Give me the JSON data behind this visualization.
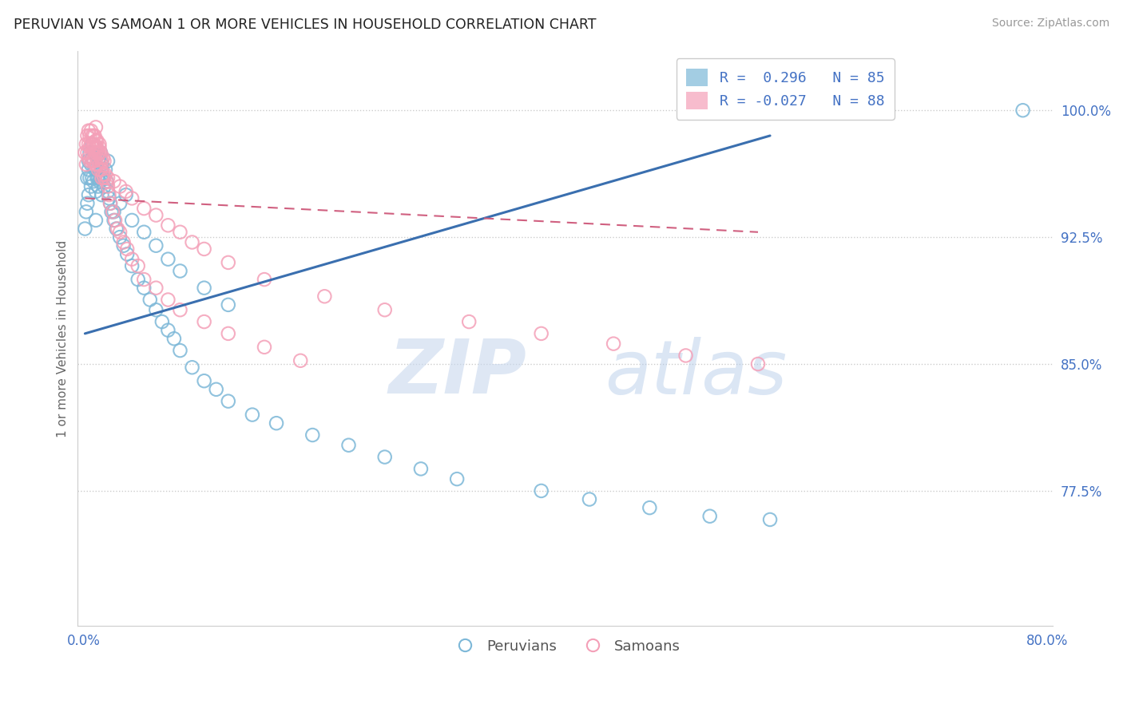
{
  "title": "PERUVIAN VS SAMOAN 1 OR MORE VEHICLES IN HOUSEHOLD CORRELATION CHART",
  "source": "Source: ZipAtlas.com",
  "ylabel": "1 or more Vehicles in Household",
  "xlim": [
    -0.005,
    0.805
  ],
  "ylim": [
    0.695,
    1.035
  ],
  "yticks": [
    0.775,
    0.85,
    0.925,
    1.0
  ],
  "ytick_labels": [
    "77.5%",
    "85.0%",
    "92.5%",
    "100.0%"
  ],
  "xtick_vals": [
    0.0,
    0.1,
    0.2,
    0.3,
    0.4,
    0.5,
    0.6,
    0.7,
    0.8
  ],
  "xtick_labels": [
    "0.0%",
    "",
    "",
    "",
    "",
    "",
    "",
    "",
    "80.0%"
  ],
  "blue_R": 0.296,
  "blue_N": 85,
  "pink_R": -0.027,
  "pink_N": 88,
  "blue_color": "#7db8d8",
  "pink_color": "#f4a0b8",
  "trend_blue_color": "#3a6faf",
  "trend_pink_color": "#d06080",
  "watermark_zip": "ZIP",
  "watermark_atlas": "atlas",
  "legend_label_blue": "Peruvians",
  "legend_label_pink": "Samoans",
  "blue_x": [
    0.001,
    0.002,
    0.003,
    0.003,
    0.004,
    0.004,
    0.004,
    0.005,
    0.005,
    0.005,
    0.006,
    0.006,
    0.007,
    0.007,
    0.007,
    0.008,
    0.008,
    0.009,
    0.009,
    0.01,
    0.01,
    0.01,
    0.011,
    0.011,
    0.012,
    0.012,
    0.013,
    0.013,
    0.014,
    0.014,
    0.015,
    0.015,
    0.016,
    0.017,
    0.018,
    0.019,
    0.02,
    0.021,
    0.022,
    0.023,
    0.025,
    0.027,
    0.03,
    0.033,
    0.036,
    0.04,
    0.045,
    0.05,
    0.055,
    0.06,
    0.065,
    0.07,
    0.075,
    0.08,
    0.09,
    0.1,
    0.11,
    0.12,
    0.14,
    0.16,
    0.19,
    0.22,
    0.25,
    0.28,
    0.31,
    0.38,
    0.42,
    0.47,
    0.52,
    0.57,
    0.01,
    0.012,
    0.015,
    0.02,
    0.025,
    0.03,
    0.035,
    0.04,
    0.05,
    0.06,
    0.07,
    0.08,
    0.1,
    0.12,
    0.78
  ],
  "blue_y": [
    0.93,
    0.94,
    0.945,
    0.96,
    0.95,
    0.965,
    0.97,
    0.96,
    0.97,
    0.975,
    0.955,
    0.968,
    0.96,
    0.972,
    0.98,
    0.958,
    0.97,
    0.965,
    0.975,
    0.952,
    0.965,
    0.978,
    0.96,
    0.973,
    0.955,
    0.97,
    0.958,
    0.972,
    0.96,
    0.975,
    0.95,
    0.968,
    0.96,
    0.955,
    0.965,
    0.958,
    0.952,
    0.948,
    0.945,
    0.94,
    0.935,
    0.93,
    0.925,
    0.92,
    0.915,
    0.908,
    0.9,
    0.895,
    0.888,
    0.882,
    0.875,
    0.87,
    0.865,
    0.858,
    0.848,
    0.84,
    0.835,
    0.828,
    0.82,
    0.815,
    0.808,
    0.802,
    0.795,
    0.788,
    0.782,
    0.775,
    0.77,
    0.765,
    0.76,
    0.758,
    0.935,
    0.96,
    0.965,
    0.97,
    0.94,
    0.945,
    0.95,
    0.935,
    0.928,
    0.92,
    0.912,
    0.905,
    0.895,
    0.885,
    1.0
  ],
  "pink_x": [
    0.001,
    0.002,
    0.002,
    0.003,
    0.003,
    0.004,
    0.004,
    0.004,
    0.005,
    0.005,
    0.005,
    0.006,
    0.006,
    0.006,
    0.007,
    0.007,
    0.007,
    0.008,
    0.008,
    0.008,
    0.009,
    0.009,
    0.01,
    0.01,
    0.01,
    0.01,
    0.011,
    0.011,
    0.012,
    0.012,
    0.013,
    0.013,
    0.014,
    0.014,
    0.015,
    0.015,
    0.016,
    0.016,
    0.017,
    0.017,
    0.018,
    0.019,
    0.02,
    0.021,
    0.022,
    0.024,
    0.026,
    0.028,
    0.03,
    0.033,
    0.036,
    0.04,
    0.045,
    0.05,
    0.06,
    0.07,
    0.08,
    0.1,
    0.12,
    0.15,
    0.18,
    0.02,
    0.025,
    0.03,
    0.035,
    0.04,
    0.05,
    0.06,
    0.07,
    0.08,
    0.09,
    0.1,
    0.12,
    0.15,
    0.2,
    0.25,
    0.32,
    0.38,
    0.44,
    0.5,
    0.56,
    0.008,
    0.009,
    0.01,
    0.011,
    0.012,
    0.013,
    0.014
  ],
  "pink_y": [
    0.975,
    0.98,
    0.968,
    0.975,
    0.985,
    0.972,
    0.98,
    0.988,
    0.97,
    0.978,
    0.985,
    0.972,
    0.98,
    0.988,
    0.97,
    0.978,
    0.985,
    0.97,
    0.978,
    0.985,
    0.97,
    0.978,
    0.968,
    0.975,
    0.982,
    0.99,
    0.968,
    0.978,
    0.965,
    0.975,
    0.968,
    0.978,
    0.965,
    0.975,
    0.96,
    0.97,
    0.962,
    0.972,
    0.96,
    0.97,
    0.962,
    0.958,
    0.955,
    0.95,
    0.945,
    0.94,
    0.935,
    0.93,
    0.928,
    0.922,
    0.918,
    0.912,
    0.908,
    0.9,
    0.895,
    0.888,
    0.882,
    0.875,
    0.868,
    0.86,
    0.852,
    0.96,
    0.958,
    0.955,
    0.952,
    0.948,
    0.942,
    0.938,
    0.932,
    0.928,
    0.922,
    0.918,
    0.91,
    0.9,
    0.89,
    0.882,
    0.875,
    0.868,
    0.862,
    0.855,
    0.85,
    0.98,
    0.985,
    0.978,
    0.982,
    0.975,
    0.98,
    0.972
  ],
  "blue_trend_x": [
    0.001,
    0.57
  ],
  "blue_trend_y": [
    0.868,
    0.985
  ],
  "pink_trend_x": [
    0.001,
    0.56
  ],
  "pink_trend_y": [
    0.948,
    0.928
  ]
}
